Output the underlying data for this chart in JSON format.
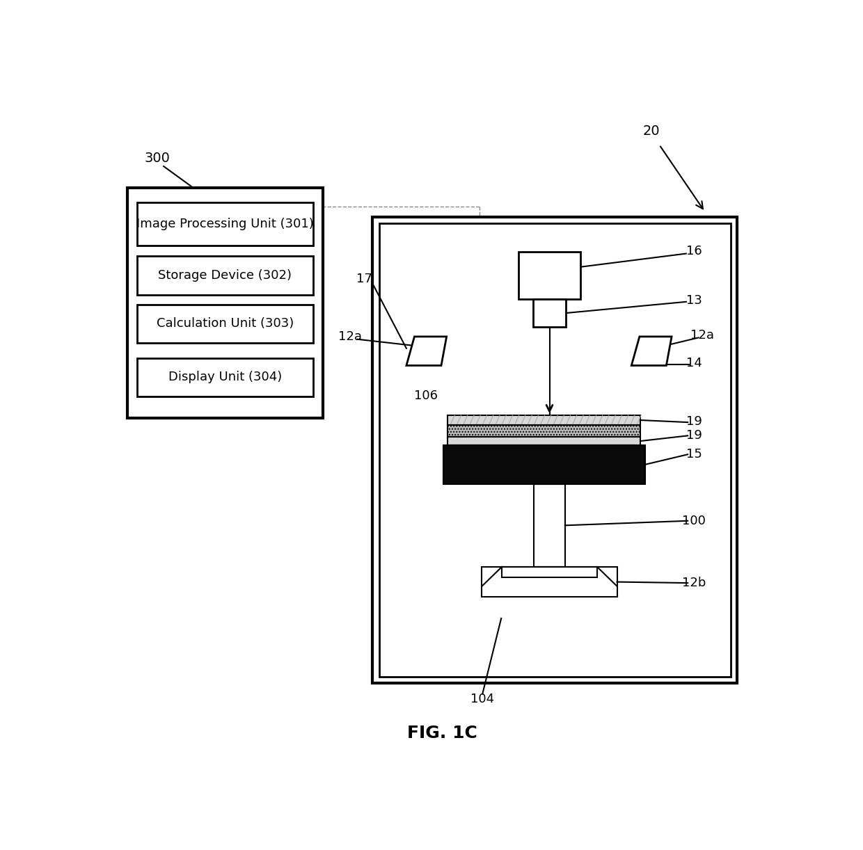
{
  "fig_label": "FIG. 1C",
  "bg_color": "#ffffff",
  "label_300": "300",
  "label_20": "20",
  "label_17": "17",
  "label_16": "16",
  "label_13": "13",
  "label_12a_left": "12a",
  "label_12a_right": "12a",
  "label_14": "14",
  "label_19_top": "19",
  "label_19_bot": "19",
  "label_15": "15",
  "label_100": "100",
  "label_12b": "12b",
  "label_104": "104",
  "label_106": "106",
  "box_labels": [
    "Image Processing Unit (301)",
    "Storage Device (302)",
    "Calculation Unit (303)",
    "Display Unit (304)"
  ]
}
